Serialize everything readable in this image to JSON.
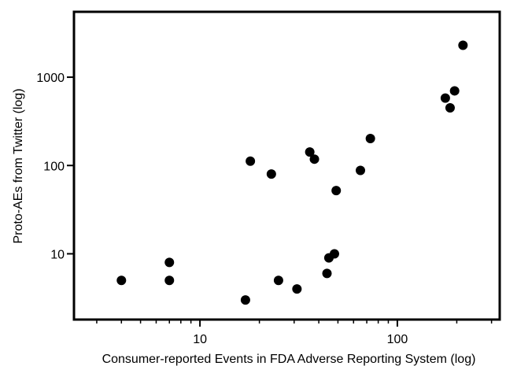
{
  "chart_data": {
    "type": "scatter",
    "title": "",
    "xlabel": "Consumer-reported Events in FDA Adverse Reporting System (log)",
    "ylabel": "Proto-AEs from Twitter (log)",
    "xscale": "log",
    "yscale": "log",
    "xlim": [
      2.3,
      330
    ],
    "ylim": [
      1.8,
      5500
    ],
    "xticks": [
      {
        "value": 10,
        "label": "10"
      },
      {
        "value": 100,
        "label": "100"
      }
    ],
    "yticks": [
      {
        "value": 10,
        "label": "10"
      },
      {
        "value": 100,
        "label": "100"
      },
      {
        "value": 1000,
        "label": "1000"
      }
    ],
    "grid": false,
    "legend": "none",
    "marker_color": "#000000",
    "points": [
      {
        "x": 4,
        "y": 5
      },
      {
        "x": 7,
        "y": 8
      },
      {
        "x": 7,
        "y": 5
      },
      {
        "x": 17,
        "y": 3
      },
      {
        "x": 18,
        "y": 112
      },
      {
        "x": 23,
        "y": 80
      },
      {
        "x": 25,
        "y": 5
      },
      {
        "x": 31,
        "y": 4
      },
      {
        "x": 36,
        "y": 142
      },
      {
        "x": 38,
        "y": 118
      },
      {
        "x": 44,
        "y": 6
      },
      {
        "x": 45,
        "y": 9
      },
      {
        "x": 48,
        "y": 10
      },
      {
        "x": 49,
        "y": 52
      },
      {
        "x": 65,
        "y": 88
      },
      {
        "x": 73,
        "y": 202
      },
      {
        "x": 175,
        "y": 580
      },
      {
        "x": 185,
        "y": 450
      },
      {
        "x": 195,
        "y": 700
      },
      {
        "x": 215,
        "y": 2300
      }
    ]
  }
}
